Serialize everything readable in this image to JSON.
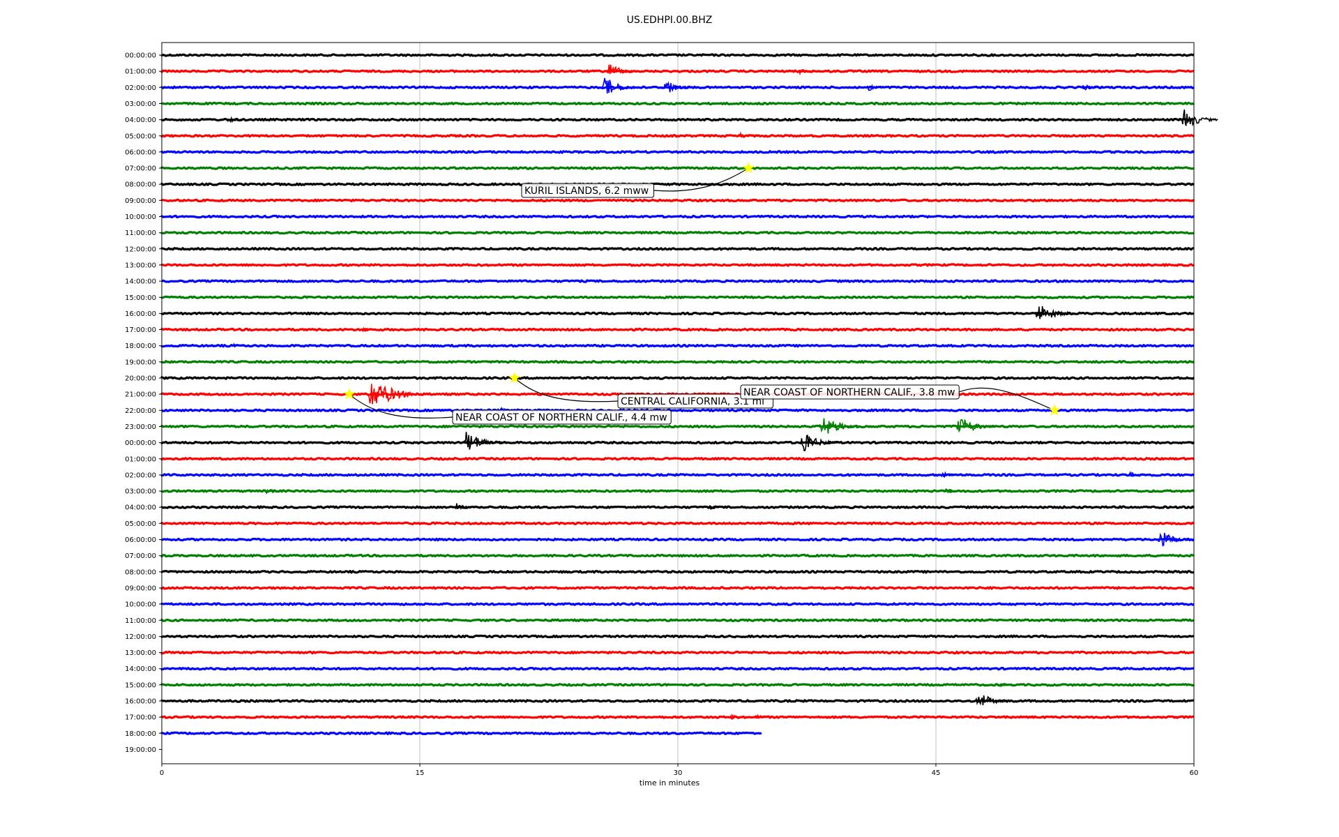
{
  "chart_data": {
    "type": "line",
    "title": "US.EDHPI.00.BHZ",
    "xlabel": "time in minutes",
    "xlim": [
      0,
      60
    ],
    "x_ticks": [
      0,
      15,
      30,
      45,
      60
    ],
    "grid": "vertical lines at x ticks",
    "line_colors": [
      "#000000",
      "#ff0000",
      "#0000ff",
      "#008000"
    ],
    "row_labels": [
      "00:00:00",
      "01:00:00",
      "02:00:00",
      "03:00:00",
      "04:00:00",
      "05:00:00",
      "06:00:00",
      "07:00:00",
      "08:00:00",
      "09:00:00",
      "10:00:00",
      "11:00:00",
      "12:00:00",
      "13:00:00",
      "14:00:00",
      "15:00:00",
      "16:00:00",
      "17:00:00",
      "18:00:00",
      "19:00:00",
      "20:00:00",
      "21:00:00",
      "22:00:00",
      "23:00:00",
      "00:00:00",
      "01:00:00",
      "02:00:00",
      "03:00:00",
      "04:00:00",
      "05:00:00",
      "06:00:00",
      "07:00:00",
      "08:00:00",
      "09:00:00",
      "10:00:00",
      "11:00:00",
      "12:00:00",
      "13:00:00",
      "14:00:00",
      "15:00:00",
      "16:00:00",
      "17:00:00",
      "18:00:00",
      "19:00:00"
    ],
    "traces_end_minute": [
      60,
      60,
      60,
      60,
      60,
      60,
      60,
      60,
      60,
      60,
      60,
      60,
      60,
      60,
      60,
      60,
      60,
      60,
      60,
      60,
      60,
      60,
      60,
      60,
      60,
      60,
      60,
      60,
      60,
      60,
      60,
      60,
      60,
      60,
      60,
      60,
      60,
      60,
      60,
      60,
      60,
      60,
      34.9
    ],
    "bursts": [
      {
        "row": 1,
        "minute": 25.9,
        "amp": 1.2
      },
      {
        "row": 1,
        "minute": 37,
        "amp": 0.5
      },
      {
        "row": 2,
        "minute": 25.6,
        "amp": 1.6
      },
      {
        "row": 2,
        "minute": 29.2,
        "amp": 1.1
      },
      {
        "row": 2,
        "minute": 41,
        "amp": 0.6
      },
      {
        "row": 2,
        "minute": 53.5,
        "amp": 0.6
      },
      {
        "row": 4,
        "minute": 3.8,
        "amp": 0.5
      },
      {
        "row": 4,
        "minute": 59.3,
        "amp": 1.5
      },
      {
        "row": 5,
        "minute": 33.5,
        "amp": 0.5
      },
      {
        "row": 16,
        "minute": 50.8,
        "amp": 1.6
      },
      {
        "row": 17,
        "minute": 11.6,
        "amp": 0.4
      },
      {
        "row": 18,
        "minute": 4,
        "amp": 0.4
      },
      {
        "row": 21,
        "minute": 12,
        "amp": 2.4
      },
      {
        "row": 22,
        "minute": 19.5,
        "amp": 0.6
      },
      {
        "row": 23,
        "minute": 38.2,
        "amp": 1.8
      },
      {
        "row": 23,
        "minute": 46.2,
        "amp": 1.6
      },
      {
        "row": 24,
        "minute": 17.5,
        "amp": 1.8
      },
      {
        "row": 24,
        "minute": 37.1,
        "amp": 1.6
      },
      {
        "row": 26,
        "minute": 45.3,
        "amp": 0.6
      },
      {
        "row": 26,
        "minute": 56.2,
        "amp": 0.5
      },
      {
        "row": 27,
        "minute": 6,
        "amp": 0.5
      },
      {
        "row": 27,
        "minute": 45.5,
        "amp": 0.5
      },
      {
        "row": 28,
        "minute": 17,
        "amp": 0.7
      },
      {
        "row": 28,
        "minute": 31.8,
        "amp": 0.4
      },
      {
        "row": 30,
        "minute": 57.9,
        "amp": 1.4
      },
      {
        "row": 39,
        "minute": 48.7,
        "amp": 0.4
      },
      {
        "row": 40,
        "minute": 47.3,
        "amp": 1.4
      },
      {
        "row": 41,
        "minute": 33,
        "amp": 0.5
      },
      {
        "row": 41,
        "minute": 34.5,
        "amp": 0.4
      }
    ],
    "events": [
      {
        "label": "KURIL ISLANDS, 6.2 mww",
        "row": 7,
        "minute": 34.1
      },
      {
        "label": "CENTRAL CALIFORNIA, 3.1 ml",
        "row": 20,
        "minute": 20.5
      },
      {
        "label": "NEAR COAST OF NORTHERN CALIF., 4.4 mw",
        "row": 21,
        "minute": 10.9
      },
      {
        "label": "NEAR COAST OF NORTHERN CALIF., 3.8 mw",
        "row": 22,
        "minute": 51.9
      }
    ],
    "event_marker_color": "#ffff00"
  }
}
